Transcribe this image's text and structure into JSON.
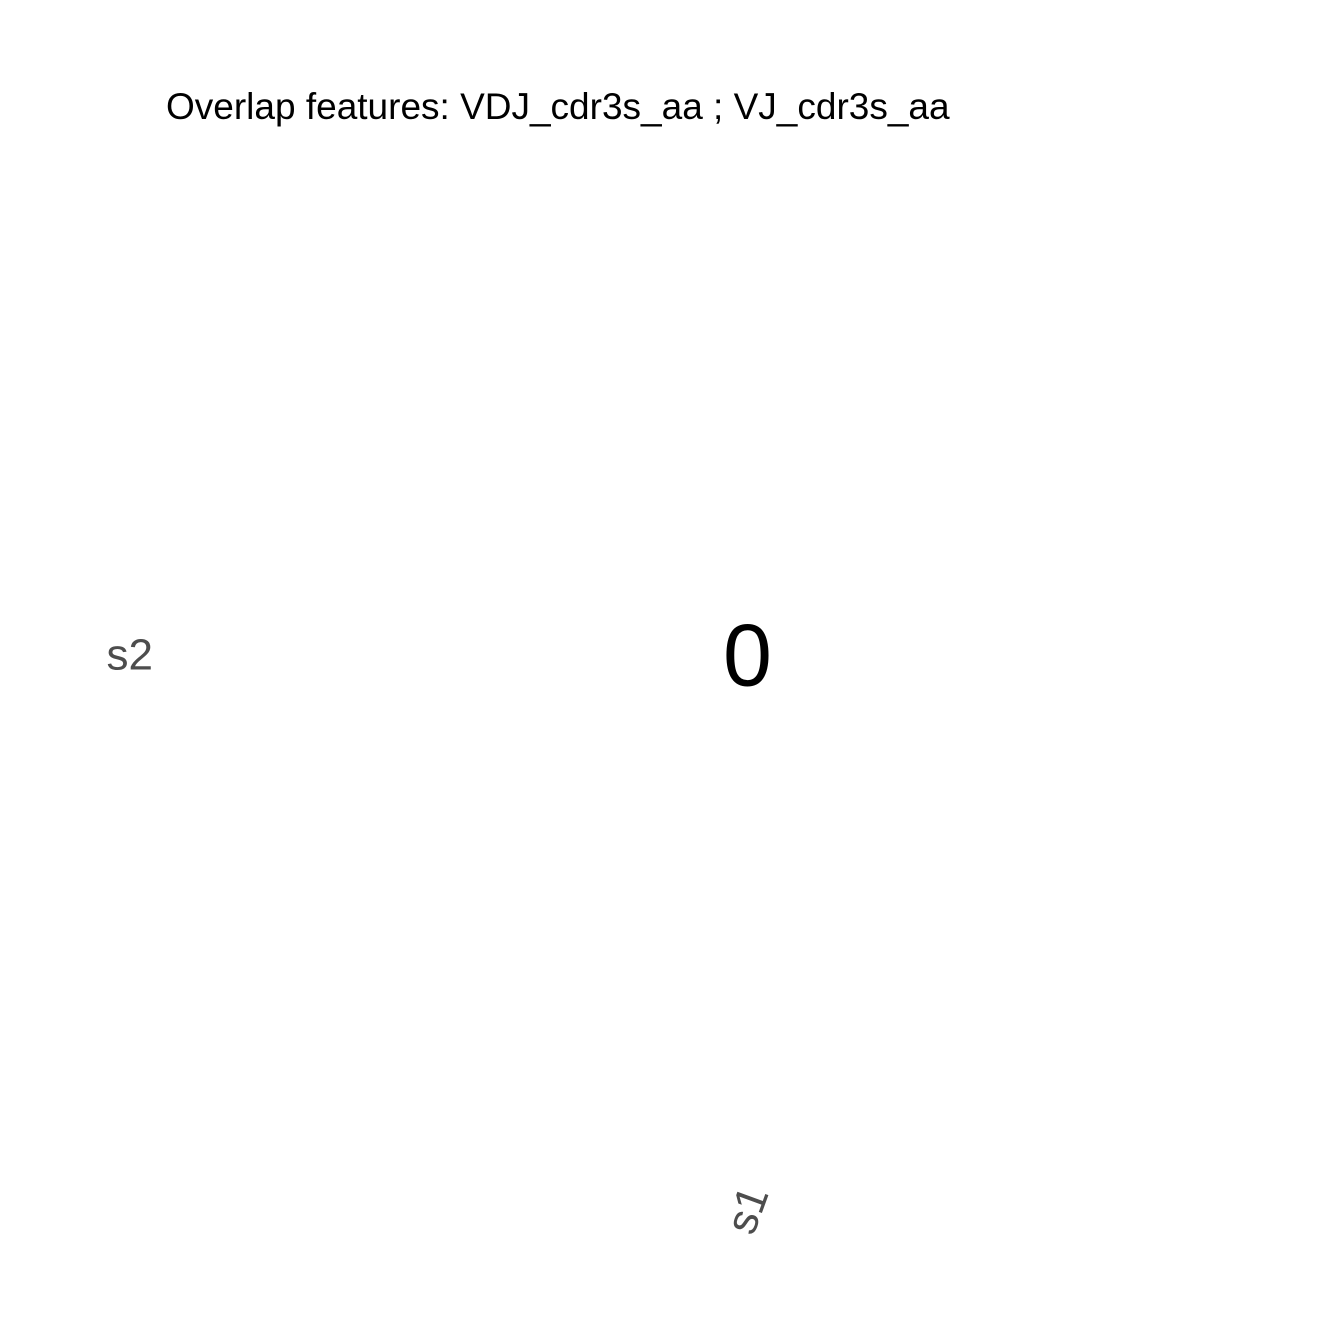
{
  "chart_data": {
    "type": "heatmap",
    "title": "Overlap features: VDJ_cdr3s_aa ; VJ_cdr3s_aa",
    "x_categories": [
      "s1"
    ],
    "y_categories": [
      "s2"
    ],
    "cells": [
      {
        "x": "s1",
        "y": "s2",
        "value": 0,
        "label": "0"
      }
    ],
    "colors": {
      "background": "#ffffff",
      "title": "#000000",
      "cell_label": "#000000",
      "tick_label": "#4d4d4d"
    },
    "grid": false,
    "legend": "none"
  }
}
